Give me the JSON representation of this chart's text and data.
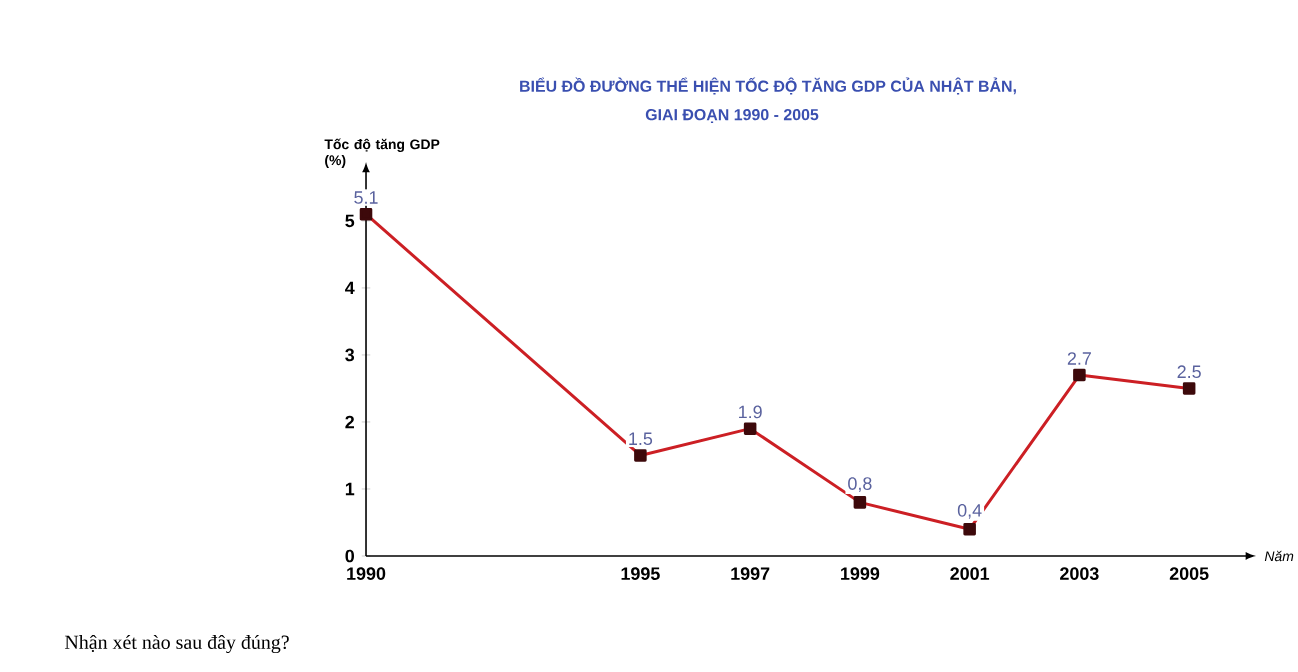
{
  "chart_data": {
    "type": "line",
    "title": "BIỂU ĐỒ ĐƯỜNG THỂ HIỆN TỐC ĐỘ TĂNG GDP CỦA NHẬT BẢN,",
    "subtitle": "GIAI ĐOẠN 1990 - 2005",
    "ylabel": "Tốc độ tăng GDP (%)",
    "xlabel": "Năm",
    "x": [
      1990,
      1995,
      1997,
      1999,
      2001,
      2003,
      2005
    ],
    "values": [
      5.1,
      1.5,
      1.9,
      0.8,
      0.4,
      2.7,
      2.5
    ],
    "value_labels": [
      "5.1",
      "1.5",
      "1.9",
      "0,8",
      "0,4",
      "2.7",
      "2.5"
    ],
    "color": "#cc1f24",
    "marker": "square",
    "line_style": "solid",
    "xlim": [
      1990,
      2006
    ],
    "xticks": [
      1990,
      1995,
      1997,
      1999,
      2001,
      2003,
      2005
    ],
    "ylim": [
      0,
      5.7
    ],
    "yticks": [
      0,
      1,
      2,
      3,
      4,
      5
    ],
    "annotations": [
      "Nhận xét nào sau đây đúng?"
    ]
  }
}
